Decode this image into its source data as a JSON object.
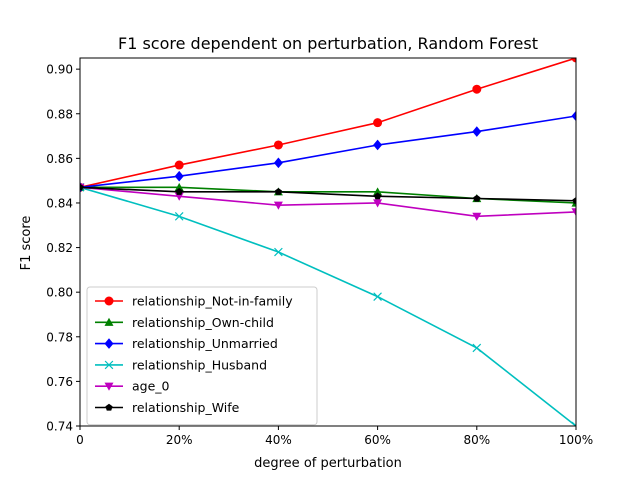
{
  "chart_data": {
    "type": "line",
    "title": "F1 score dependent on perturbation, Random Forest",
    "xlabel": "degree of perturbation",
    "ylabel": "F1 score",
    "x": [
      0,
      0.2,
      0.4,
      0.6,
      0.8,
      1.0
    ],
    "x_tick_labels": [
      "0",
      "20%",
      "40%",
      "60%",
      "80%",
      "100%"
    ],
    "xlim": [
      0,
      1.0
    ],
    "y_ticks": [
      0.74,
      0.76,
      0.78,
      0.8,
      0.82,
      0.84,
      0.86,
      0.88,
      0.9
    ],
    "y_tick_labels": [
      "0.74",
      "0.76",
      "0.78",
      "0.80",
      "0.82",
      "0.84",
      "0.86",
      "0.88",
      "0.90"
    ],
    "ylim": [
      0.74,
      0.905
    ],
    "grid": false,
    "legend_position": "lower-left",
    "series": [
      {
        "name": "relationship_Not-in-family",
        "color": "#ff0000",
        "marker": "circle",
        "values": [
          0.847,
          0.857,
          0.866,
          0.876,
          0.891,
          0.905
        ]
      },
      {
        "name": "relationship_Own-child",
        "color": "#008000",
        "marker": "triangle-up",
        "values": [
          0.847,
          0.847,
          0.845,
          0.845,
          0.842,
          0.84
        ]
      },
      {
        "name": "relationship_Unmarried",
        "color": "#0000ff",
        "marker": "diamond",
        "values": [
          0.847,
          0.852,
          0.858,
          0.866,
          0.872,
          0.879
        ]
      },
      {
        "name": "relationship_Husband",
        "color": "#00bfbf",
        "marker": "x",
        "values": [
          0.847,
          0.834,
          0.818,
          0.798,
          0.775,
          0.74
        ]
      },
      {
        "name": "age_0",
        "color": "#bf00bf",
        "marker": "triangle-down",
        "values": [
          0.847,
          0.843,
          0.839,
          0.84,
          0.834,
          0.836
        ]
      },
      {
        "name": "relationship_Wife",
        "color": "#000000",
        "marker": "pentagon",
        "values": [
          0.847,
          0.845,
          0.845,
          0.843,
          0.842,
          0.841
        ]
      }
    ]
  }
}
